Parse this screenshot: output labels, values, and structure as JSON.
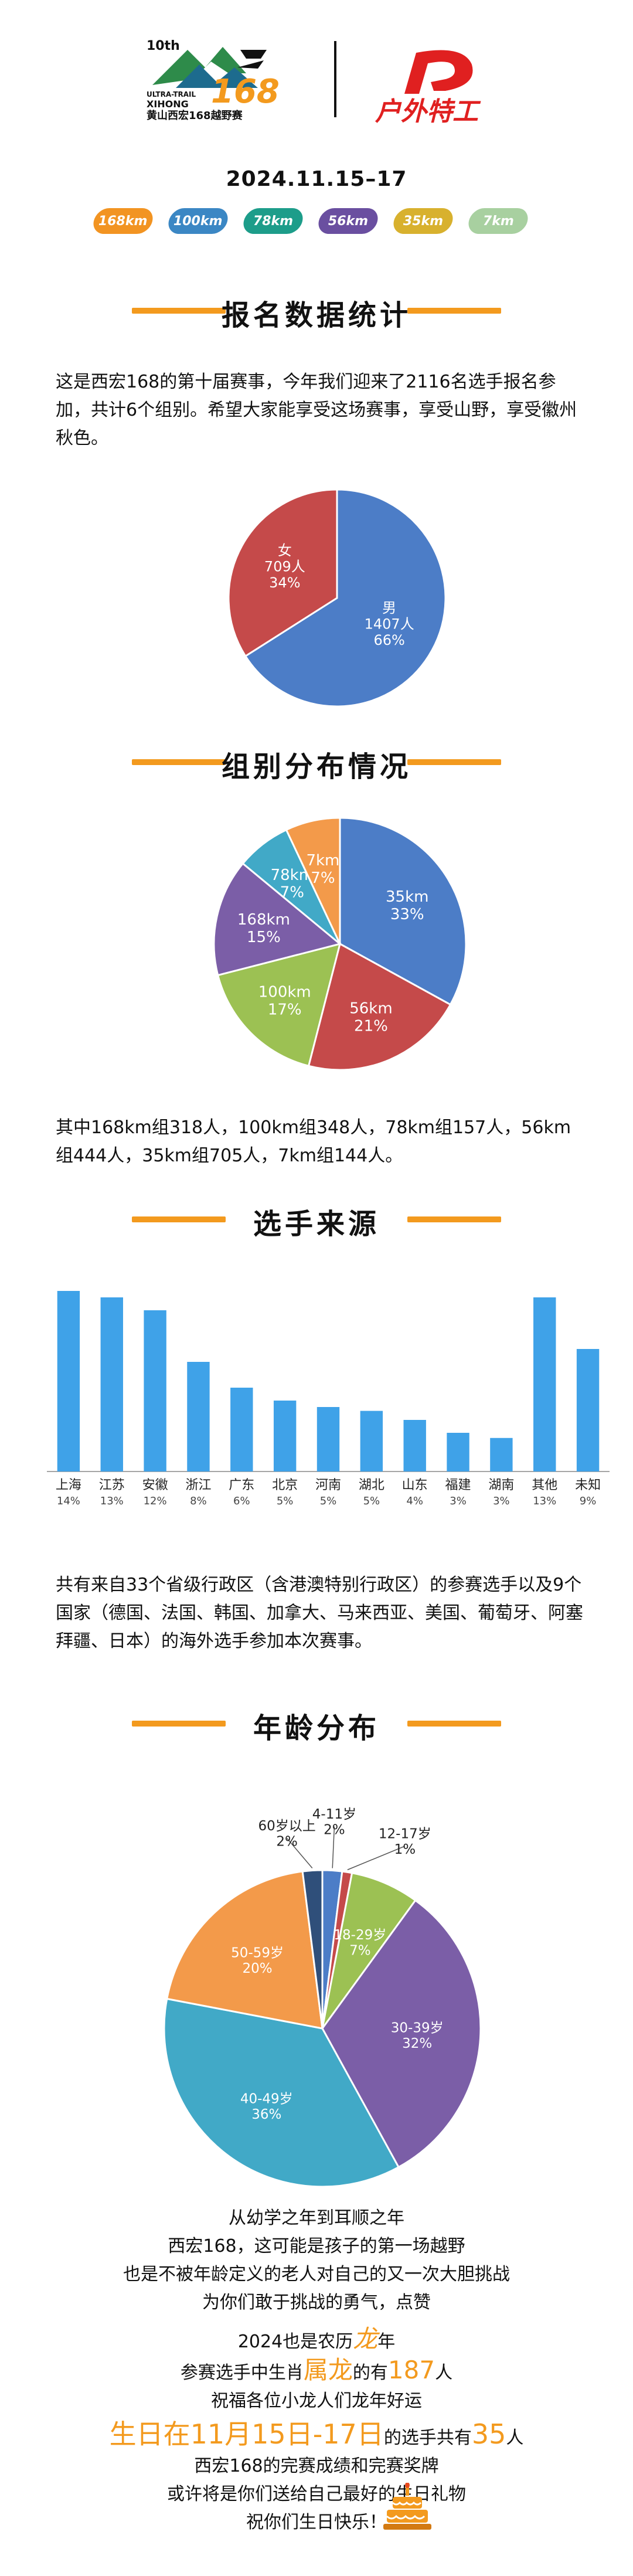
{
  "header": {
    "event_number": "10th",
    "event_brand_small": "ULTRA-TRAIL",
    "event_brand_number": "168",
    "event_brand_xihong": "XIHONG",
    "event_name_cn": "黄山西宏168越野赛",
    "partner_name": "户外特工",
    "date": "2024.11.15–17",
    "badges": [
      {
        "label": "168km",
        "color": "#f29422"
      },
      {
        "label": "100km",
        "color": "#3b87c4"
      },
      {
        "label": "78km",
        "color": "#1d9d8a"
      },
      {
        "label": "56km",
        "color": "#6a4fa0"
      },
      {
        "label": "35km",
        "color": "#d8b12e"
      },
      {
        "label": "7km",
        "color": "#a8d0a0"
      }
    ]
  },
  "sections": {
    "registration": {
      "title": "报名数据统计",
      "paragraph": "这是西宏168的第十届赛事，今年我们迎来了2116名选手报名参加，共计6个组别。希望大家能享受这场赛事，享受山野，享受徽州秋色。"
    },
    "groups": {
      "title": "组别分布情况",
      "paragraph": "其中168km组318人，100km组348人，78km组157人，56km组444人，35km组705人，7km组144人。"
    },
    "source": {
      "title": "选手来源",
      "paragraph": "共有来自33个省级行政区（含港澳特别行政区）的参赛选手以及9个国家（德国、法国、韩国、加拿大、马来西亚、美国、葡萄牙、阿塞拜疆、日本）的海外选手参加本次赛事。"
    },
    "age": {
      "title": "年龄分布"
    },
    "closing": {
      "lines": [
        "从幼学之年到耳顺之年",
        "西宏168，这可能是孩子的第一场越野",
        "也是不被年龄定义的老人对自己的又一次大胆挑战",
        "为你们敢于挑战的勇气，点赞"
      ],
      "dragon_line_pre": "2024也是农历",
      "dragon_word": "龙",
      "dragon_line_post": "年",
      "count_line_pre": "参赛选手中生肖",
      "count_word": "属龙",
      "count_line_mid": "的有",
      "count_number": "187",
      "count_line_post": "人",
      "wish_line": "祝福各位小龙人们龙年好运",
      "birthday_highlight": "生日在11月15日-17日",
      "birthday_mid": "的选手共有",
      "birthday_number": "35",
      "birthday_post": "人",
      "final_lines": [
        "西宏168的完赛成绩和完赛奖牌",
        "或许将是你们送给自己最好的生日礼物",
        "祝你们生日快乐！"
      ],
      "cake_icon": "birthday-cake-icon"
    }
  },
  "chart_data": [
    {
      "type": "pie",
      "categories": [
        "男",
        "女"
      ],
      "counts_label": [
        "1407人",
        "709人"
      ],
      "values": [
        66,
        34
      ],
      "colors": [
        "#4c7dc7",
        "#c54a4a"
      ]
    },
    {
      "type": "pie",
      "categories": [
        "35km",
        "56km",
        "100km",
        "168km",
        "78km",
        "7km"
      ],
      "values": [
        33,
        21,
        17,
        15,
        7,
        7
      ],
      "colors": [
        "#4c7dc7",
        "#c54a4a",
        "#9cc153",
        "#7b5ea7",
        "#41a9c7",
        "#f39a4a"
      ]
    },
    {
      "type": "bar",
      "categories": [
        "上海",
        "江苏",
        "安徽",
        "浙江",
        "广东",
        "北京",
        "河南",
        "湖北",
        "山东",
        "福建",
        "湖南",
        "其他",
        "未知"
      ],
      "labels": [
        "14%",
        "13%",
        "12%",
        "8%",
        "6%",
        "5%",
        "5%",
        "5%",
        "4%",
        "3%",
        "3%",
        "13%",
        "9%"
      ],
      "values": [
        14,
        13.5,
        12.5,
        8.5,
        6.5,
        5.5,
        5,
        4.7,
        4,
        3,
        2.6,
        13.5,
        9.5
      ],
      "color": "#3fa2e8",
      "ylim": [
        0,
        15
      ]
    },
    {
      "type": "pie",
      "categories": [
        "4-11岁",
        "12-17岁",
        "18-29岁",
        "30-39岁",
        "40-49岁",
        "50-59岁",
        "60岁以上"
      ],
      "values": [
        2,
        1,
        7,
        32,
        36,
        20,
        2
      ],
      "colors": [
        "#4c7dc7",
        "#c54a4a",
        "#9cc153",
        "#7b5ea7",
        "#41a9c7",
        "#f39a4a",
        "#2f4f7a"
      ]
    }
  ]
}
